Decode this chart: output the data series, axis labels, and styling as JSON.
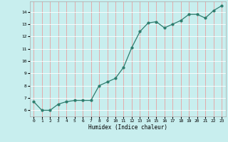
{
  "x": [
    0,
    1,
    2,
    3,
    4,
    5,
    6,
    7,
    8,
    9,
    10,
    11,
    12,
    13,
    14,
    15,
    16,
    17,
    18,
    19,
    20,
    21,
    22,
    23
  ],
  "y": [
    6.7,
    6.0,
    6.0,
    6.5,
    6.7,
    6.8,
    6.8,
    6.8,
    8.0,
    8.3,
    8.6,
    9.5,
    11.1,
    12.4,
    13.1,
    13.2,
    12.7,
    13.0,
    13.3,
    13.8,
    13.8,
    13.5,
    14.1,
    14.5
  ],
  "line_color": "#2e7d6e",
  "marker_color": "#2e7d6e",
  "bg_color": "#c8eeee",
  "grid_color_x": "#e8a0a0",
  "grid_color_y": "#ffffff",
  "xlabel": "Humidex (Indice chaleur)",
  "ylim": [
    5.5,
    14.85
  ],
  "xlim": [
    -0.5,
    23.5
  ],
  "yticks": [
    6,
    7,
    8,
    9,
    10,
    11,
    12,
    13,
    14
  ],
  "xticks": [
    0,
    1,
    2,
    3,
    4,
    5,
    6,
    7,
    8,
    9,
    10,
    11,
    12,
    13,
    14,
    15,
    16,
    17,
    18,
    19,
    20,
    21,
    22,
    23
  ],
  "figsize": [
    3.2,
    2.0
  ],
  "dpi": 100
}
